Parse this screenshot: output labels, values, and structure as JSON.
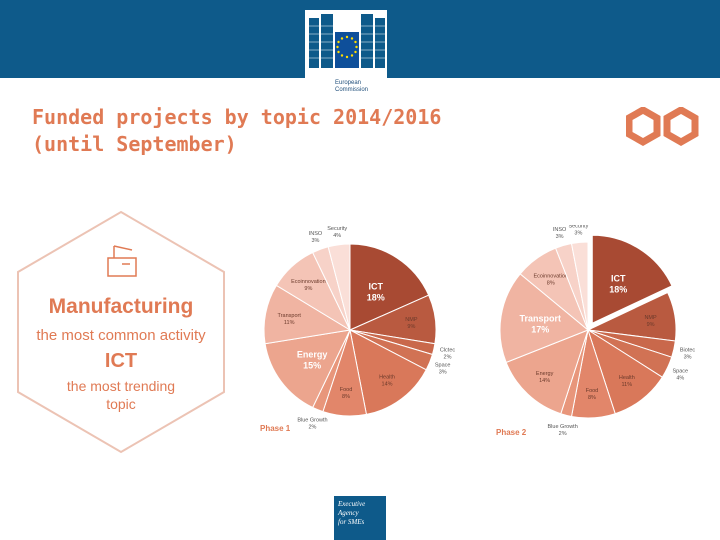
{
  "header": {
    "logo_text_line1": "European",
    "logo_text_line2": "Commission",
    "title": "Funded projects by topic 2014/2016\n(until September)",
    "brand_color": "#0e5a8a",
    "accent_color": "#e07a54"
  },
  "highlight": {
    "line1": "Manufacturing",
    "line2": "the most common activity",
    "line3": "ICT",
    "line4": "the most trending",
    "line5": "topic",
    "icon": "factory-icon"
  },
  "footer": {
    "logo_line1": "Executive",
    "logo_line2": "Agency",
    "logo_line3": "for SMEs"
  },
  "chart_data": [
    {
      "type": "pie",
      "title": "Phase 1",
      "slices": [
        {
          "label": "ICT",
          "value": 18,
          "value_label": "18%",
          "emphasis": true,
          "color": "#a84a33"
        },
        {
          "label": "NMP",
          "value": 9,
          "value_label": "9%",
          "color": "#b95a40"
        },
        {
          "label": "Clctec",
          "value": 2,
          "value_label": "2%",
          "color": "#c9684b"
        },
        {
          "label": "Space",
          "value": 3,
          "value_label": "3%",
          "color": "#d17254"
        },
        {
          "label": "Health",
          "value": 14,
          "value_label": "14%",
          "color": "#d9785a"
        },
        {
          "label": "Food",
          "value": 8,
          "value_label": "8%",
          "color": "#e2866a"
        },
        {
          "label": "Blue Growth",
          "value": 2,
          "value_label": "2%",
          "color": "#e8967b"
        },
        {
          "label": "Energy",
          "value": 15,
          "value_label": "15%",
          "emphasis": true,
          "color": "#eca58e"
        },
        {
          "label": "Transport",
          "value": 11,
          "value_label": "11%",
          "color": "#f0b4a2"
        },
        {
          "label": "Ecoinnovation",
          "value": 9,
          "value_label": "9%",
          "color": "#f4c4b6"
        },
        {
          "label": "INSO",
          "value": 3,
          "value_label": "3%",
          "color": "#f7d2c8"
        },
        {
          "label": "Security",
          "value": 4,
          "value_label": "4%",
          "color": "#fadfd8"
        }
      ]
    },
    {
      "type": "pie",
      "title": "Phase 2",
      "slices": [
        {
          "label": "ICT",
          "value": 18,
          "value_label": "18%",
          "emphasis": true,
          "color": "#a84a33"
        },
        {
          "label": "NMP",
          "value": 9,
          "value_label": "9%",
          "color": "#b95a40"
        },
        {
          "label": "Biotec",
          "value": 3,
          "value_label": "3%",
          "color": "#c9684b"
        },
        {
          "label": "Space",
          "value": 4,
          "value_label": "4%",
          "color": "#d17254"
        },
        {
          "label": "Health",
          "value": 11,
          "value_label": "11%",
          "color": "#d9785a"
        },
        {
          "label": "Food",
          "value": 8,
          "value_label": "8%",
          "color": "#e2866a"
        },
        {
          "label": "Blue Growth",
          "value": 2,
          "value_label": "2%",
          "color": "#e8967b"
        },
        {
          "label": "Energy",
          "value": 14,
          "value_label": "14%",
          "color": "#eca58e"
        },
        {
          "label": "Transport",
          "value": 17,
          "value_label": "17%",
          "emphasis": true,
          "color": "#f0b4a2"
        },
        {
          "label": "Ecoinnovation",
          "value": 8,
          "value_label": "8%",
          "color": "#f4c4b6"
        },
        {
          "label": "INSO",
          "value": 3,
          "value_label": "3%",
          "color": "#f7d2c8"
        },
        {
          "label": "Security",
          "value": 3,
          "value_label": "3%",
          "color": "#fadfd8"
        }
      ]
    }
  ]
}
